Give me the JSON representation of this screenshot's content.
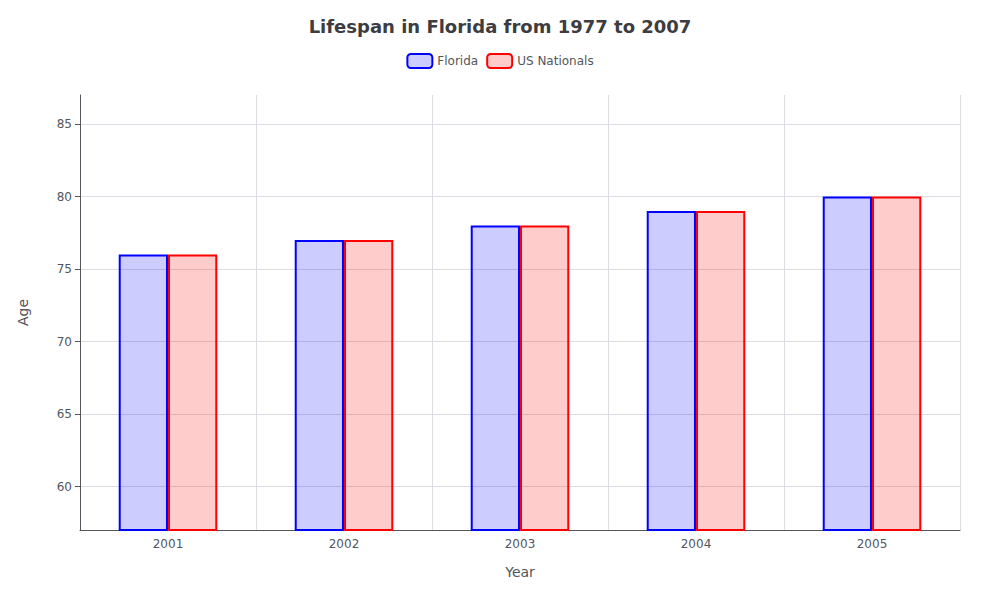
{
  "chart_data": {
    "type": "bar",
    "title": "Lifespan in Florida from 1977 to 2007",
    "x_label": "Year",
    "y_label": "Age",
    "categories": [
      "2001",
      "2002",
      "2003",
      "2004",
      "2005"
    ],
    "series": [
      {
        "name": "Florida",
        "color": "#0000ff",
        "values": [
          76,
          77,
          78,
          79,
          80
        ]
      },
      {
        "name": "US Nationals",
        "color": "#ff0000",
        "values": [
          76,
          77,
          78,
          79,
          80
        ]
      }
    ],
    "ylim": [
      57,
      87
    ],
    "yticks": [
      60,
      65,
      70,
      75,
      80,
      85
    ],
    "grid": true,
    "legend": "top"
  }
}
